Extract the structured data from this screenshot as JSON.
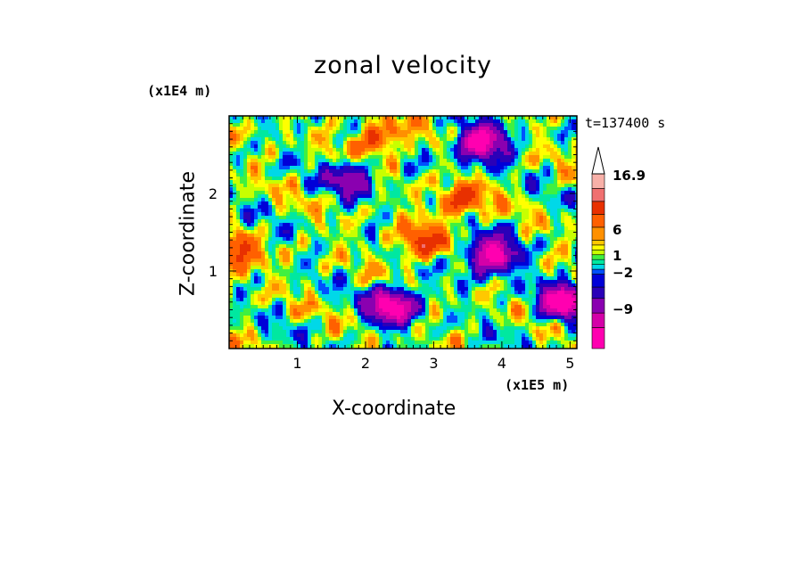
{
  "chart_data": {
    "type": "heatmap",
    "title": "zonal velocity",
    "xlabel": "X-coordinate",
    "ylabel": "Z-coordinate",
    "x_unit": "(x1E5 m)",
    "y_unit": "(x1E4 m)",
    "time_label": "t=137400 s",
    "x_ticks": [
      "1",
      "2",
      "3",
      "4",
      "5"
    ],
    "y_ticks": [
      "1",
      "2"
    ],
    "xlim": [
      0,
      5.1
    ],
    "ylim": [
      0,
      3.0
    ],
    "colorbar": {
      "levels": [
        {
          "color": "#ff00b0"
        },
        {
          "color": "#d400a8"
        },
        {
          "color": "#8a00b0"
        },
        {
          "color": "#2a00b8"
        },
        {
          "color": "#0000d8"
        },
        {
          "color": "#0050ff"
        },
        {
          "color": "#00d8e8"
        },
        {
          "color": "#00e8a0"
        },
        {
          "color": "#40f040"
        },
        {
          "color": "#c8ff00"
        },
        {
          "color": "#ffff00"
        },
        {
          "color": "#ffc800"
        },
        {
          "color": "#ff9000"
        },
        {
          "color": "#ff6000"
        },
        {
          "color": "#e83000"
        },
        {
          "color": "#f07070"
        },
        {
          "color": "#f8b0a8"
        }
      ],
      "labels": [
        "16.9",
        "6",
        "1",
        "−2",
        "−9"
      ]
    },
    "features": [
      {
        "x": 2.4,
        "z": 0.55,
        "level": "strong-negative"
      },
      {
        "x": 3.85,
        "z": 1.2,
        "level": "strong-negative"
      },
      {
        "x": 3.7,
        "z": 2.65,
        "level": "strong-negative"
      },
      {
        "x": 1.8,
        "z": 2.2,
        "level": "negative"
      },
      {
        "x": 3.4,
        "z": 1.9,
        "level": "positive"
      },
      {
        "x": 2.2,
        "z": 2.7,
        "level": "positive"
      },
      {
        "x": 0.05,
        "z": 1.2,
        "level": "positive"
      },
      {
        "x": 2.8,
        "z": 1.35,
        "level": "positive"
      },
      {
        "x": 4.9,
        "z": 0.6,
        "level": "strong-negative"
      }
    ]
  }
}
